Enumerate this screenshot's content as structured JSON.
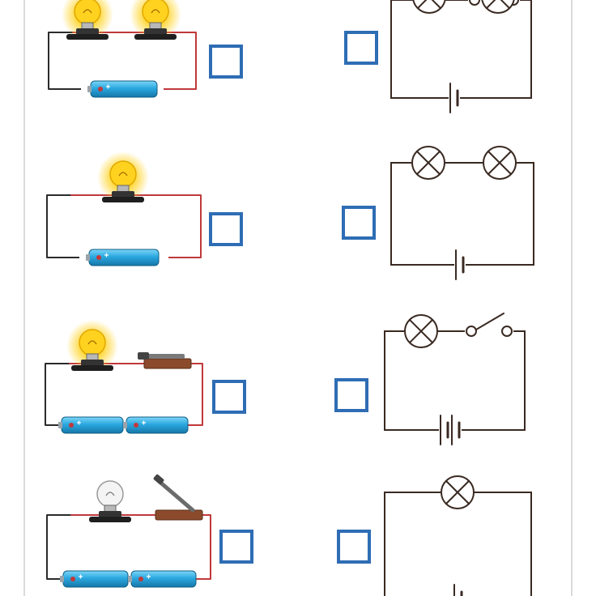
{
  "worksheet": {
    "colors": {
      "wire_black": "#2b2b2b",
      "wire_red": "#c0393b",
      "schematic_line": "#3a2a22",
      "answer_box": "#2e6db4",
      "bulb_glow": "#ffd21f",
      "bulb_off": "#f4f4f4",
      "battery_body": "#2aa8e0",
      "lamp_base": "#333333",
      "switch_wood": "#8b4a2b",
      "page_border": "#cfcfcf"
    },
    "rows": [
      {
        "picture": {
          "bulbs": [
            "lit",
            "lit"
          ],
          "batteries": 1,
          "switch": "none"
        },
        "schematic": {
          "lamps": 2,
          "cells": 1,
          "switch": "open"
        },
        "answer_left": "",
        "answer_right": ""
      },
      {
        "picture": {
          "bulbs": [
            "lit"
          ],
          "batteries": 1,
          "switch": "none"
        },
        "schematic": {
          "lamps": 2,
          "cells": 1,
          "switch": "none"
        },
        "answer_left": "",
        "answer_right": ""
      },
      {
        "picture": {
          "bulbs": [
            "lit"
          ],
          "batteries": 2,
          "switch": "closed"
        },
        "schematic": {
          "lamps": 1,
          "cells": 2,
          "switch": "open"
        },
        "answer_left": "",
        "answer_right": ""
      },
      {
        "picture": {
          "bulbs": [
            "off"
          ],
          "batteries": 2,
          "switch": "open"
        },
        "schematic": {
          "lamps": 1,
          "cells": 1,
          "switch": "none"
        },
        "answer_left": "",
        "answer_right": ""
      }
    ]
  }
}
